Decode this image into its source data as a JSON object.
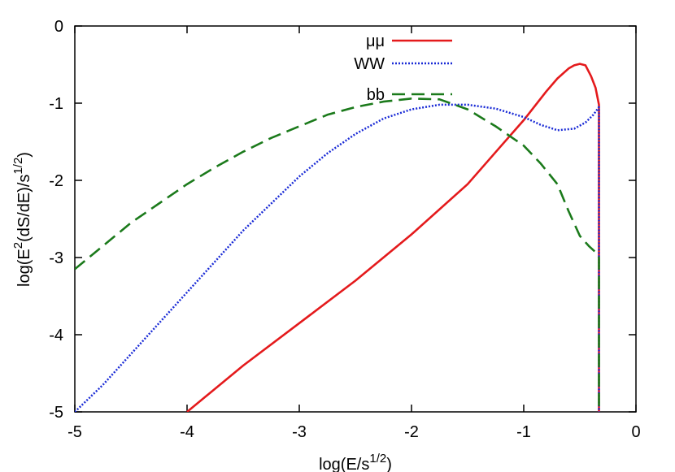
{
  "chart_data": {
    "type": "line",
    "xlabel_base": "log(E/s",
    "xlabel_sup": "1/2",
    "xlabel_end": ")",
    "ylabel_pre": "log(E",
    "ylabel_sup1": "2",
    "ylabel_mid": "(dS/dE)/s",
    "ylabel_sup2": "1/2",
    "ylabel_end": ")",
    "xlim": [
      -5,
      0
    ],
    "ylim": [
      -5,
      0
    ],
    "xticks": [
      -5,
      -4,
      -3,
      -2,
      -1,
      0
    ],
    "yticks": [
      -5,
      -4,
      -3,
      -2,
      -1,
      0
    ],
    "xtick_labels": [
      "-5",
      "-4",
      "-3",
      "-2",
      "-1",
      "0"
    ],
    "ytick_labels": [
      "-5",
      "-4",
      "-3",
      "-2",
      "-1",
      "0"
    ],
    "legend_position": "top-center",
    "series": [
      {
        "name": "μμ",
        "color": "#e41a1c",
        "dash": "solid",
        "x": [
          -4.0,
          -3.5,
          -3.0,
          -2.5,
          -2.0,
          -1.5,
          -1.2,
          -1.0,
          -0.8,
          -0.7,
          -0.6,
          -0.55,
          -0.5,
          -0.45,
          -0.4,
          -0.36,
          -0.33,
          -0.33
        ],
        "y": [
          -5.0,
          -4.4,
          -3.85,
          -3.3,
          -2.7,
          -2.05,
          -1.55,
          -1.22,
          -0.85,
          -0.68,
          -0.55,
          -0.51,
          -0.49,
          -0.51,
          -0.65,
          -0.8,
          -1.02,
          -5.0
        ]
      },
      {
        "name": "WW",
        "color": "#1a2bd6",
        "dash": "dotted",
        "x": [
          -5.0,
          -4.75,
          -4.5,
          -4.25,
          -4.0,
          -3.75,
          -3.5,
          -3.25,
          -3.0,
          -2.75,
          -2.5,
          -2.25,
          -2.0,
          -1.75,
          -1.5,
          -1.25,
          -1.0,
          -0.85,
          -0.7,
          -0.55,
          -0.45,
          -0.38,
          -0.33,
          -0.33
        ],
        "y": [
          -5.0,
          -4.65,
          -4.25,
          -3.85,
          -3.45,
          -3.05,
          -2.65,
          -2.3,
          -1.95,
          -1.65,
          -1.4,
          -1.2,
          -1.08,
          -1.02,
          -1.02,
          -1.07,
          -1.18,
          -1.28,
          -1.35,
          -1.33,
          -1.25,
          -1.15,
          -1.05,
          -5.0
        ]
      },
      {
        "name": "bb",
        "color": "#1b7a1b",
        "dash": "dashed",
        "x": [
          -5.0,
          -4.75,
          -4.5,
          -4.25,
          -4.0,
          -3.75,
          -3.5,
          -3.25,
          -3.0,
          -2.75,
          -2.5,
          -2.25,
          -2.0,
          -1.75,
          -1.5,
          -1.25,
          -1.0,
          -0.85,
          -0.7,
          -0.6,
          -0.5,
          -0.42,
          -0.36,
          -0.33,
          -0.33
        ],
        "y": [
          -3.15,
          -2.85,
          -2.55,
          -2.3,
          -2.05,
          -1.83,
          -1.63,
          -1.45,
          -1.3,
          -1.15,
          -1.05,
          -0.98,
          -0.94,
          -0.95,
          -1.08,
          -1.3,
          -1.55,
          -1.78,
          -2.05,
          -2.4,
          -2.72,
          -2.85,
          -2.93,
          -3.0,
          -5.0
        ]
      }
    ]
  }
}
